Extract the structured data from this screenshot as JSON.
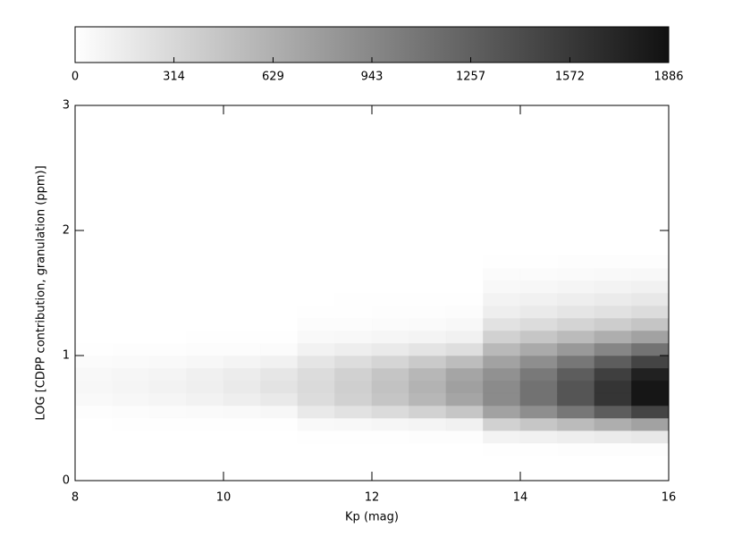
{
  "chart_data": {
    "type": "heatmap",
    "xlabel": "Kp (mag)",
    "ylabel": "LOG [CDPP contribution, granulation (ppm)]",
    "xlim": [
      8,
      16
    ],
    "xticks": [
      8,
      10,
      12,
      14,
      16
    ],
    "ylim": [
      0,
      3
    ],
    "yticks": [
      0,
      1,
      2,
      3
    ],
    "clim": [
      0,
      1886
    ],
    "cticks": [
      0,
      314,
      629,
      943,
      1257,
      1572,
      1886
    ],
    "colormap": [
      "#ffffff",
      "#111111"
    ],
    "x_bins": [
      8,
      8.5,
      9,
      9.5,
      10,
      10.5,
      11,
      11.5,
      12,
      12.5,
      13,
      13.5,
      14,
      14.5,
      15,
      15.5,
      16
    ],
    "y_bins": [
      0.2,
      0.3,
      0.4,
      0.5,
      0.6,
      0.7,
      0.8,
      0.9,
      1.0,
      1.1,
      1.2,
      1.3,
      1.4,
      1.5,
      1.6,
      1.7,
      1.8
    ],
    "values": [
      [
        0,
        0,
        0,
        0,
        0,
        0,
        0,
        0,
        0,
        0,
        0,
        9,
        11,
        14,
        16,
        19
      ],
      [
        0,
        0,
        0,
        0,
        0,
        0,
        6,
        8,
        10,
        12,
        15,
        92,
        112,
        135,
        160,
        185
      ],
      [
        3,
        4,
        5,
        7,
        9,
        11,
        44,
        57,
        72,
        90,
        113,
        368,
        448,
        540,
        640,
        740
      ],
      [
        18,
        24,
        30,
        39,
        51,
        66,
        174,
        228,
        288,
        360,
        450,
        736,
        896,
        1080,
        1280,
        1480
      ],
      [
        48,
        64,
        80,
        104,
        136,
        176,
        276,
        361,
        456,
        570,
        713,
        920,
        1120,
        1350,
        1600,
        1850
      ],
      [
        60,
        80,
        100,
        130,
        170,
        220,
        290,
        380,
        480,
        600,
        750,
        920,
        1120,
        1350,
        1600,
        1850
      ],
      [
        54,
        72,
        90,
        117,
        153,
        198,
        276,
        361,
        456,
        570,
        713,
        874,
        1064,
        1283,
        1520,
        1758
      ],
      [
        30,
        40,
        50,
        65,
        85,
        110,
        203,
        266,
        336,
        420,
        525,
        736,
        896,
        1080,
        1280,
        1480
      ],
      [
        9,
        12,
        15,
        20,
        26,
        33,
        102,
        133,
        168,
        210,
        263,
        552,
        672,
        810,
        960,
        1110
      ],
      [
        2,
        2,
        3,
        4,
        5,
        7,
        44,
        57,
        72,
        90,
        113,
        368,
        448,
        540,
        640,
        740
      ],
      [
        0,
        0,
        0,
        0,
        0,
        0,
        20,
        27,
        34,
        42,
        53,
        230,
        280,
        338,
        400,
        463
      ],
      [
        0,
        0,
        0,
        0,
        0,
        0,
        9,
        11,
        14,
        18,
        23,
        138,
        168,
        203,
        240,
        278
      ],
      [
        0,
        0,
        0,
        0,
        0,
        0,
        3,
        4,
        5,
        6,
        8,
        92,
        112,
        135,
        160,
        185
      ],
      [
        0,
        0,
        0,
        0,
        0,
        0,
        0,
        0,
        0,
        0,
        0,
        55,
        67,
        81,
        96,
        111
      ],
      [
        0,
        0,
        0,
        0,
        0,
        0,
        0,
        0,
        0,
        0,
        0,
        28,
        34,
        41,
        48,
        56
      ],
      [
        0,
        0,
        0,
        0,
        0,
        0,
        0,
        0,
        0,
        0,
        0,
        9,
        11,
        14,
        16,
        19
      ]
    ]
  }
}
